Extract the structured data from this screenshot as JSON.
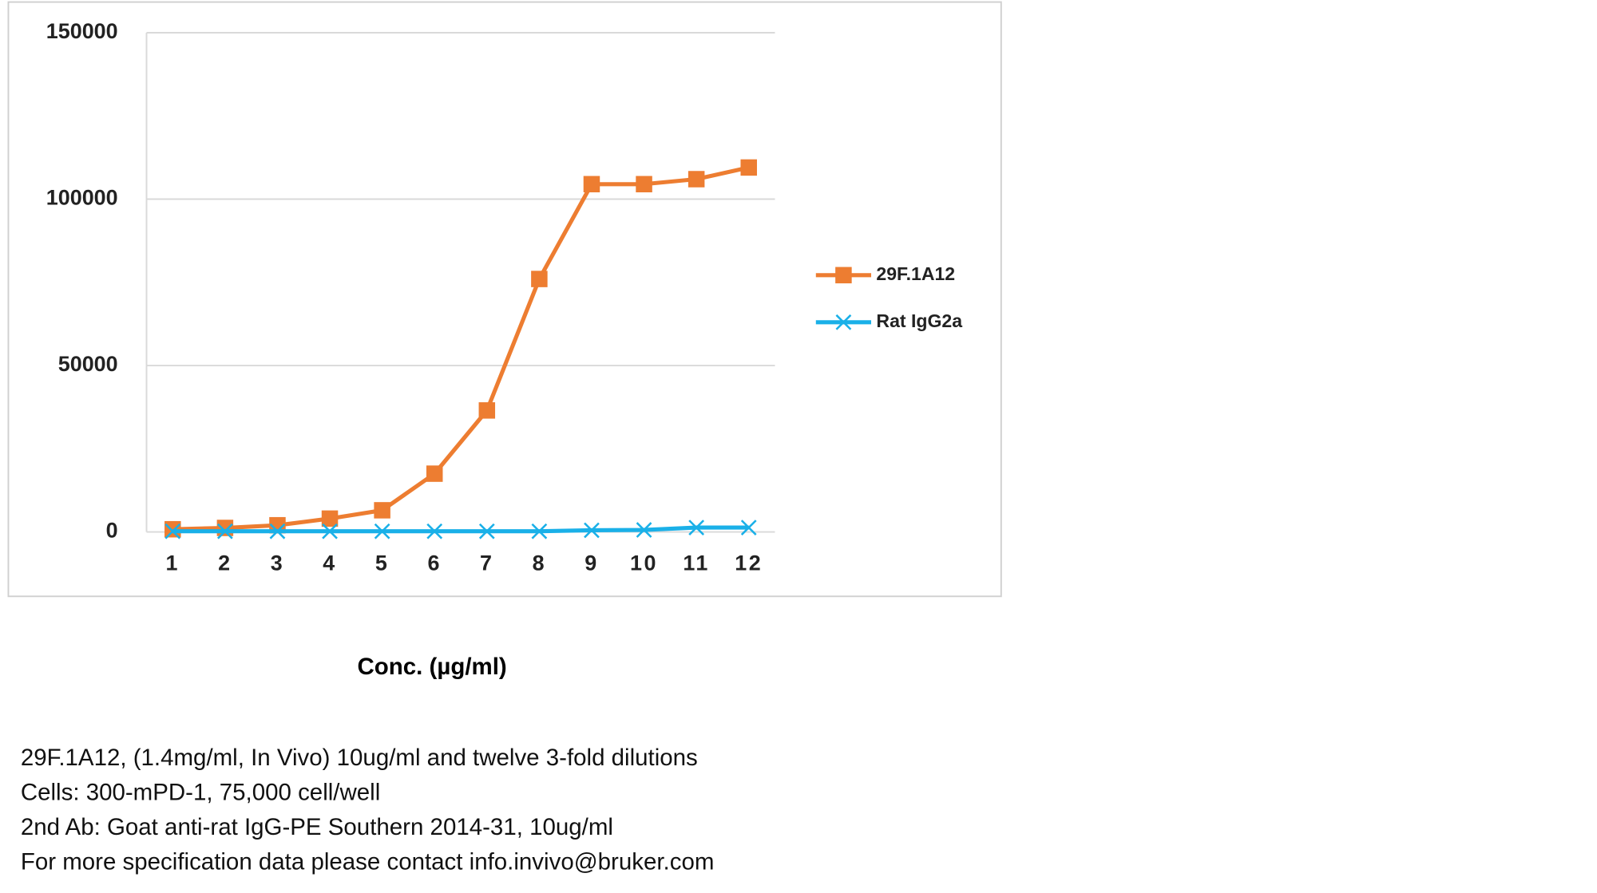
{
  "chart_data": {
    "type": "line",
    "x_label": "Conc. (µg/ml)",
    "categories": [
      "1",
      "2",
      "3",
      "4",
      "5",
      "6",
      "7",
      "8",
      "9",
      "10",
      "11",
      "12"
    ],
    "series": [
      {
        "name": "29F.1A12",
        "color": "#ed7d31",
        "marker": "square",
        "values": [
          800,
          1200,
          2000,
          4000,
          6500,
          17500,
          36500,
          76000,
          104500,
          104500,
          106000,
          109500
        ]
      },
      {
        "name": "Rat IgG2a",
        "color": "#1ab0e8",
        "marker": "x",
        "values": [
          200,
          200,
          200,
          200,
          200,
          200,
          200,
          200,
          500,
          600,
          1300,
          1300
        ]
      }
    ],
    "ylim": [
      0,
      150000
    ],
    "yticks": [
      0,
      50000,
      100000,
      150000
    ],
    "grid": true,
    "legend": "right"
  },
  "notes": [
    "29F.1A12, (1.4mg/ml, In Vivo) 10ug/ml and twelve 3-fold dilutions",
    "Cells: 300-mPD-1, 75,000 cell/well",
    "2nd Ab:  Goat anti-rat IgG-PE  Southern 2014-31, 10ug/ml",
    "For more specification data please contact info.invivo@bruker.com"
  ]
}
